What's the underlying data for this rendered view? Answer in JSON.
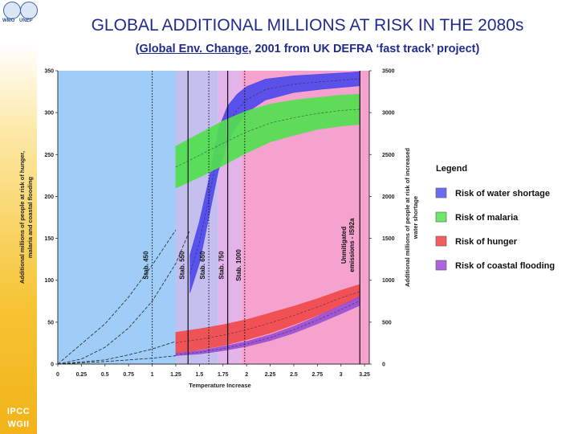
{
  "logos": {
    "wmo": "WMO",
    "unep": "UNEP"
  },
  "header": {
    "title": "GLOBAL ADDITIONAL MILLIONS AT RISK IN THE 2080s",
    "subtitle_pre": "(",
    "subtitle_u": "Global Env. Change",
    "subtitle_post": ", 2001 from UK DEFRA ‘fast track’ project)"
  },
  "footer": {
    "line1": "IPCC",
    "line2": "WGII"
  },
  "chart_data": {
    "type": "area",
    "xlabel": "Temperature Increase",
    "ylabel": "Additional millions of people at risk of hunger, malaria and coastal flooding",
    "ylabel_right": "Additional millions of people at risk of increased water shortage",
    "xlim": [
      0,
      3.3
    ],
    "ylim_left": [
      0,
      350
    ],
    "ylim_right": [
      0,
      3500
    ],
    "x_ticks": [
      "0",
      "0.25",
      "0.5",
      "0.75",
      "1",
      "1.25",
      "1.5",
      "1.75",
      "2",
      "2.25",
      "2.5",
      "2.75",
      "3",
      "3.25"
    ],
    "y_ticks_left": [
      "0",
      "50",
      "100",
      "150",
      "200",
      "250",
      "300",
      "350"
    ],
    "y_ticks_right": [
      "0",
      "500",
      "1000",
      "1500",
      "2000",
      "2500",
      "3000",
      "3500"
    ],
    "background_bands": [
      {
        "from": 0,
        "to": 1.25,
        "color": "#9fcdf7"
      },
      {
        "from": 1.25,
        "to": 1.7,
        "color": "#c5bff0"
      },
      {
        "from": 1.7,
        "to": 1.95,
        "color": "#e4b3ea"
      },
      {
        "from": 1.95,
        "to": 3.3,
        "color": "#f6a2cf"
      }
    ],
    "stabilisation_lines": [
      {
        "label": "Stab. 450",
        "x": 1.0,
        "style": "dotted"
      },
      {
        "label": "Stab. 550",
        "x": 1.38,
        "style": "solid"
      },
      {
        "label": "Stab. 650",
        "x": 1.6,
        "style": "dotted"
      },
      {
        "label": "Stab. 750",
        "x": 1.8,
        "style": "solid"
      },
      {
        "label": "Stab. 1000",
        "x": 1.98,
        "style": "dotted"
      },
      {
        "label": "Unmitigated emissions - IS92a",
        "x": 3.2,
        "style": "solid"
      }
    ],
    "series": [
      {
        "name": "Risk of water shortage",
        "axis": "right",
        "color": "#4d49ea",
        "x": [
          1.4,
          1.5,
          1.6,
          1.7,
          1.8,
          1.9,
          2.0,
          2.2,
          2.5,
          2.8,
          3.1,
          3.2
        ],
        "lower": [
          850,
          1200,
          1750,
          2300,
          2650,
          2850,
          3000,
          3150,
          3240,
          3280,
          3310,
          3320
        ],
        "upper": [
          1300,
          1700,
          2200,
          2800,
          3080,
          3220,
          3310,
          3400,
          3440,
          3460,
          3480,
          3490
        ]
      },
      {
        "name": "Risk of malaria",
        "axis": "left",
        "color": "#51e04f",
        "x": [
          1.25,
          1.5,
          1.75,
          2.0,
          2.25,
          2.5,
          2.75,
          3.0,
          3.2
        ],
        "lower": [
          210,
          223,
          237,
          252,
          265,
          273,
          280,
          284,
          286
        ],
        "upper": [
          260,
          275,
          290,
          302,
          310,
          315,
          318,
          321,
          322
        ]
      },
      {
        "name": "Risk of hunger",
        "axis": "left",
        "color": "#f04a4a",
        "x": [
          1.25,
          1.5,
          1.75,
          2.0,
          2.25,
          2.5,
          2.75,
          3.0,
          3.2
        ],
        "lower": [
          13,
          17,
          22,
          29,
          37,
          47,
          58,
          70,
          78
        ],
        "upper": [
          38,
          42,
          47,
          53,
          61,
          69,
          78,
          88,
          95
        ]
      },
      {
        "name": "Risk of coastal flooding",
        "axis": "left",
        "color": "#9b4fd2",
        "x": [
          1.25,
          1.5,
          1.75,
          2.0,
          2.25,
          2.5,
          2.75,
          3.0,
          3.2
        ],
        "lower": [
          10,
          12,
          16,
          21,
          28,
          37,
          48,
          60,
          70
        ],
        "upper": [
          13,
          16,
          21,
          27,
          35,
          45,
          57,
          70,
          81
        ]
      }
    ],
    "projections": [
      {
        "of": "Risk of water shortage",
        "axis": "right",
        "x": [
          0,
          0.25,
          0.5,
          0.75,
          1.0,
          1.25,
          1.4
        ],
        "values": [
          0,
          60,
          200,
          430,
          750,
          1200,
          1600
        ]
      },
      {
        "of": "Risk of malaria",
        "axis": "left",
        "x": [
          0,
          0.5,
          0.75,
          1.0,
          1.25
        ],
        "values": [
          0,
          48,
          80,
          118,
          160
        ]
      },
      {
        "of": "Risk of hunger",
        "axis": "left",
        "x": [
          0,
          0.5,
          0.75,
          1.0,
          1.25
        ],
        "values": [
          0,
          5,
          11,
          18,
          27
        ]
      },
      {
        "of": "Risk of coastal flooding",
        "axis": "left",
        "x": [
          0,
          0.5,
          0.75,
          1.0,
          1.25
        ],
        "values": [
          0,
          3,
          5,
          7,
          10
        ]
      }
    ],
    "legend": {
      "title": "Legend",
      "position": "right",
      "items": [
        {
          "label": "Risk of water shortage",
          "color": "#6c6cf2"
        },
        {
          "label": "Risk of malaria",
          "color": "#6ae868"
        },
        {
          "label": "Risk of hunger",
          "color": "#f25e5e"
        },
        {
          "label": "Risk of coastal flooding",
          "color": "#b064dc"
        }
      ]
    }
  }
}
